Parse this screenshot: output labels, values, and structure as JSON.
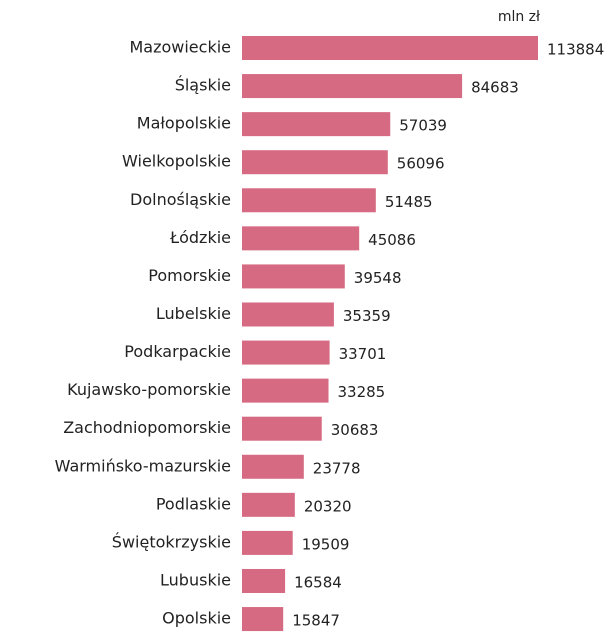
{
  "chart_data": {
    "type": "bar",
    "orientation": "horizontal",
    "unit": "mln zł",
    "color": "#d66a82",
    "categories": [
      "Mazowieckie",
      "Śląskie",
      "Małopolskie",
      "Wielkopolskie",
      "Dolnośląskie",
      "Łódzkie",
      "Pomorskie",
      "Lubelskie",
      "Podkarpackie",
      "Kujawsko-pomorskie",
      "Zachodniopomorskie",
      "Warmińsko-mazurskie",
      "Podlaskie",
      "Świętokrzyskie",
      "Lubuskie",
      "Opolskie"
    ],
    "values": [
      113884,
      84683,
      57039,
      56096,
      51485,
      45086,
      39548,
      35359,
      33701,
      33285,
      30683,
      23778,
      20320,
      19509,
      16584,
      15847
    ]
  }
}
